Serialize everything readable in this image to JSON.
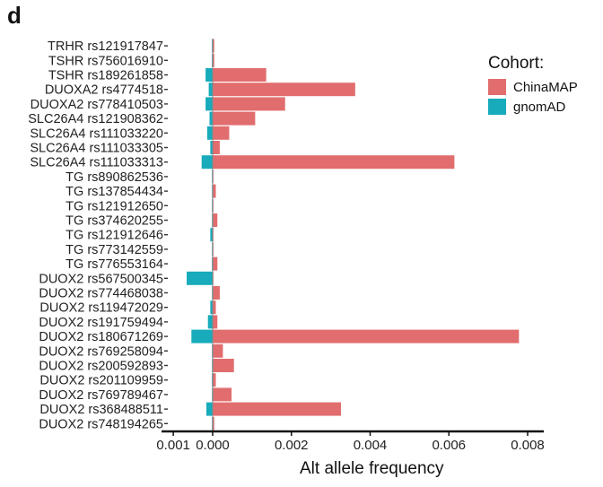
{
  "panel_letter": "d",
  "chart_data": {
    "type": "bar",
    "orientation": "horizontal",
    "xlabel": "Alt allele frequency",
    "ylabel": "",
    "xlim": [
      -0.001,
      0.008
    ],
    "x_ticks": [
      -0.001,
      0.0,
      0.002,
      0.004,
      0.006,
      0.008
    ],
    "x_tick_labels": [
      "0.001",
      "0.000",
      "0.002",
      "0.004",
      "0.006",
      "0.008"
    ],
    "legend_title": "Cohort:",
    "legend_position": "top-right",
    "colors": {
      "ChinaMAP": "#e16d6e",
      "gnomAD": "#17abbb"
    },
    "categories": [
      "TRHR rs121917847",
      "TSHR rs756016910",
      "TSHR rs189261858",
      "DUOXA2 rs4774518",
      "DUOXA2 rs778410503",
      "SLC26A4 rs121908362",
      "SLC26A4 rs111033220",
      "SLC26A4 rs111033305",
      "SLC26A4 rs111033313",
      "TG rs890862536",
      "TG rs137854434",
      "TG rs121912650",
      "TG rs374620255",
      "TG rs121912646",
      "TG rs773142559",
      "TG rs776553164",
      "DUOX2 rs567500345",
      "DUOX2 rs774468038",
      "DUOX2 rs119472029",
      "DUOX2 rs191759494",
      "DUOX2 rs180671269",
      "DUOX2 rs769258094",
      "DUOX2 rs200592893",
      "DUOX2 rs201109959",
      "DUOX2 rs769789467",
      "DUOX2 rs368488511",
      "DUOX2 rs748194265"
    ],
    "series": [
      {
        "name": "ChinaMAP",
        "values": [
          4e-05,
          4e-05,
          0.00136,
          0.00362,
          0.00184,
          0.00108,
          0.00042,
          0.00018,
          0.00614,
          2e-05,
          8e-05,
          2e-05,
          0.00012,
          2e-05,
          2e-05,
          0.00012,
          2e-05,
          0.00018,
          8e-05,
          0.00012,
          0.00778,
          0.00026,
          0.00054,
          8e-05,
          0.00048,
          0.00326,
          4e-05
        ]
      },
      {
        "name": "gnomAD",
        "values": [
          2e-05,
          2e-05,
          0.00018,
          0.0001,
          0.00018,
          8e-05,
          0.00014,
          6e-05,
          0.00028,
          1e-05,
          1e-05,
          1e-05,
          1e-05,
          6e-05,
          1e-05,
          2e-05,
          0.00066,
          1e-05,
          6e-05,
          0.00012,
          0.00054,
          1e-05,
          1e-05,
          2e-05,
          1e-05,
          0.00016,
          1e-05
        ]
      }
    ]
  }
}
